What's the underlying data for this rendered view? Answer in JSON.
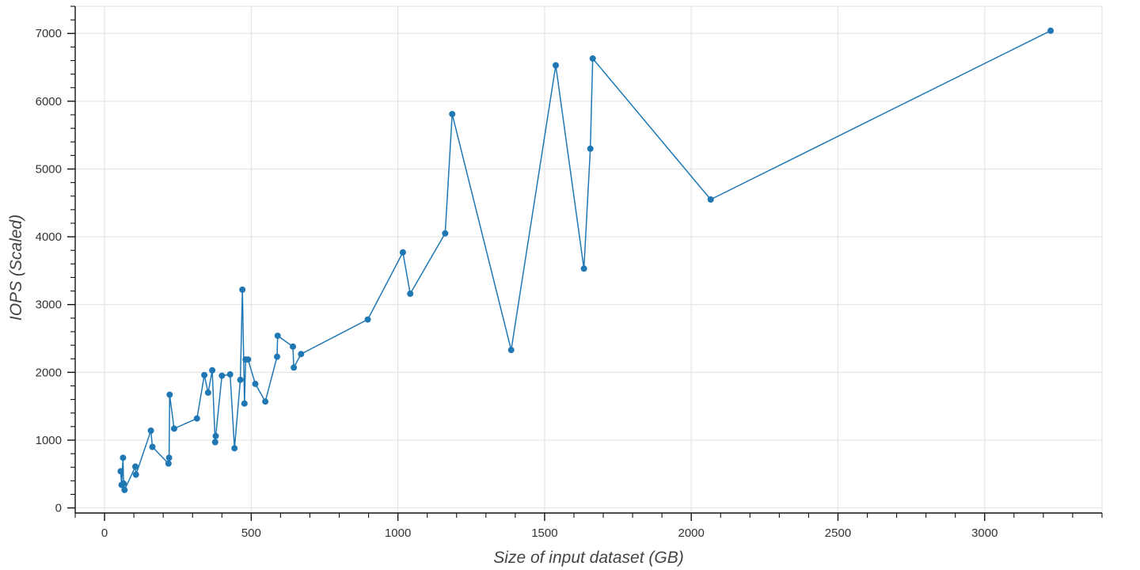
{
  "chart_data": {
    "type": "line",
    "title": "",
    "xlabel": "Size of input dataset (GB)",
    "ylabel": "IOPS (Scaled)",
    "xlim": [
      -100,
      3400
    ],
    "ylim": [
      -75,
      7400
    ],
    "x_ticks": [
      0,
      500,
      1000,
      1500,
      2000,
      2500,
      3000
    ],
    "y_ticks": [
      0,
      1000,
      2000,
      3000,
      4000,
      5000,
      6000,
      7000
    ],
    "x_minor_step": 100,
    "y_minor_step": 200,
    "grid": true,
    "legend": "none",
    "series": [
      {
        "color": "#1f77b4",
        "marker": "circle",
        "points": [
          [
            55,
            540
          ],
          [
            58,
            340
          ],
          [
            63,
            740
          ],
          [
            65,
            360
          ],
          [
            68,
            265
          ],
          [
            105,
            610
          ],
          [
            107,
            490
          ],
          [
            158,
            1140
          ],
          [
            163,
            900
          ],
          [
            218,
            655
          ],
          [
            220,
            740
          ],
          [
            222,
            1670
          ],
          [
            237,
            1170
          ],
          [
            315,
            1320
          ],
          [
            340,
            1960
          ],
          [
            353,
            1700
          ],
          [
            367,
            2030
          ],
          [
            377,
            970
          ],
          [
            379,
            1060
          ],
          [
            400,
            1950
          ],
          [
            428,
            1970
          ],
          [
            443,
            880
          ],
          [
            463,
            1890
          ],
          [
            470,
            3220
          ],
          [
            477,
            1540
          ],
          [
            481,
            2190
          ],
          [
            489,
            2190
          ],
          [
            514,
            1830
          ],
          [
            548,
            1570
          ],
          [
            588,
            2230
          ],
          [
            590,
            2540
          ],
          [
            642,
            2380
          ],
          [
            645,
            2070
          ],
          [
            670,
            2270
          ],
          [
            897,
            2780
          ],
          [
            1017,
            3770
          ],
          [
            1042,
            3160
          ],
          [
            1161,
            4050
          ],
          [
            1185,
            5810
          ],
          [
            1386,
            2330
          ],
          [
            1538,
            6530
          ],
          [
            1634,
            3530
          ],
          [
            1656,
            5300
          ],
          [
            1664,
            6630
          ],
          [
            2066,
            4550
          ],
          [
            3225,
            7040
          ]
        ]
      }
    ]
  }
}
